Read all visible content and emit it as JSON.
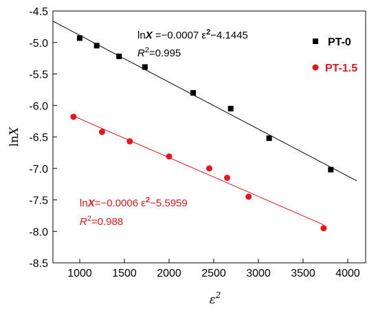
{
  "chart_data": {
    "type": "scatter",
    "xlabel": "ε²",
    "ylabel": "lnX",
    "xlim": [
      700,
      4200
    ],
    "ylim": [
      -8.5,
      -4.5
    ],
    "xticks": [
      1000,
      1500,
      2000,
      2500,
      3000,
      3500,
      4000
    ],
    "yticks": [
      -4.5,
      -5.0,
      -5.5,
      -6.0,
      -6.5,
      -7.0,
      -7.5,
      -8.0,
      -8.5
    ],
    "xtick_labels": [
      "1000",
      "1500",
      "2000",
      "2500",
      "3000",
      "3500",
      "4000"
    ],
    "ytick_labels": [
      "-4.5",
      "-5.0",
      "-5.5",
      "-6.0",
      "-6.5",
      "-7.0",
      "-7.5",
      "-8.0",
      "-8.5"
    ],
    "grid": false,
    "legend_position": "top-right",
    "series": [
      {
        "name": "PT-0",
        "marker": "square",
        "color": "#000000",
        "x": [
          1000,
          1190,
          1440,
          1730,
          2270,
          2690,
          3120,
          3810
        ],
        "y": [
          -4.93,
          -5.05,
          -5.22,
          -5.39,
          -5.8,
          -6.05,
          -6.52,
          -7.02
        ],
        "fit": {
          "slope": -0.0007,
          "intercept": -4.1445,
          "x_range": [
            700,
            4100
          ]
        },
        "equation": {
          "prefix": "ln",
          "var": "X",
          "text": " =−0.0007 ε",
          "sup": "2",
          "tail": "−4.1445"
        },
        "r2": {
          "label": "R",
          "sup": "2",
          "value": "=0.995"
        }
      },
      {
        "name": "PT-1.5",
        "marker": "circle",
        "color": "#e8141e",
        "x": [
          930,
          1250,
          1560,
          2000,
          2450,
          2650,
          2890,
          3730
        ],
        "y": [
          -6.18,
          -6.42,
          -6.57,
          -6.81,
          -7.0,
          -7.15,
          -7.45,
          -7.95
        ],
        "fit": {
          "slope": -0.0006,
          "intercept": -5.5959,
          "x_range": [
            930,
            3730
          ]
        },
        "equation": {
          "prefix": "ln",
          "var": "X",
          "text": "=−0.0006 ε",
          "sup": "2",
          "tail": "−5.5959"
        },
        "r2": {
          "label": "R",
          "sup": "2",
          "value": "=0.988"
        }
      }
    ]
  }
}
